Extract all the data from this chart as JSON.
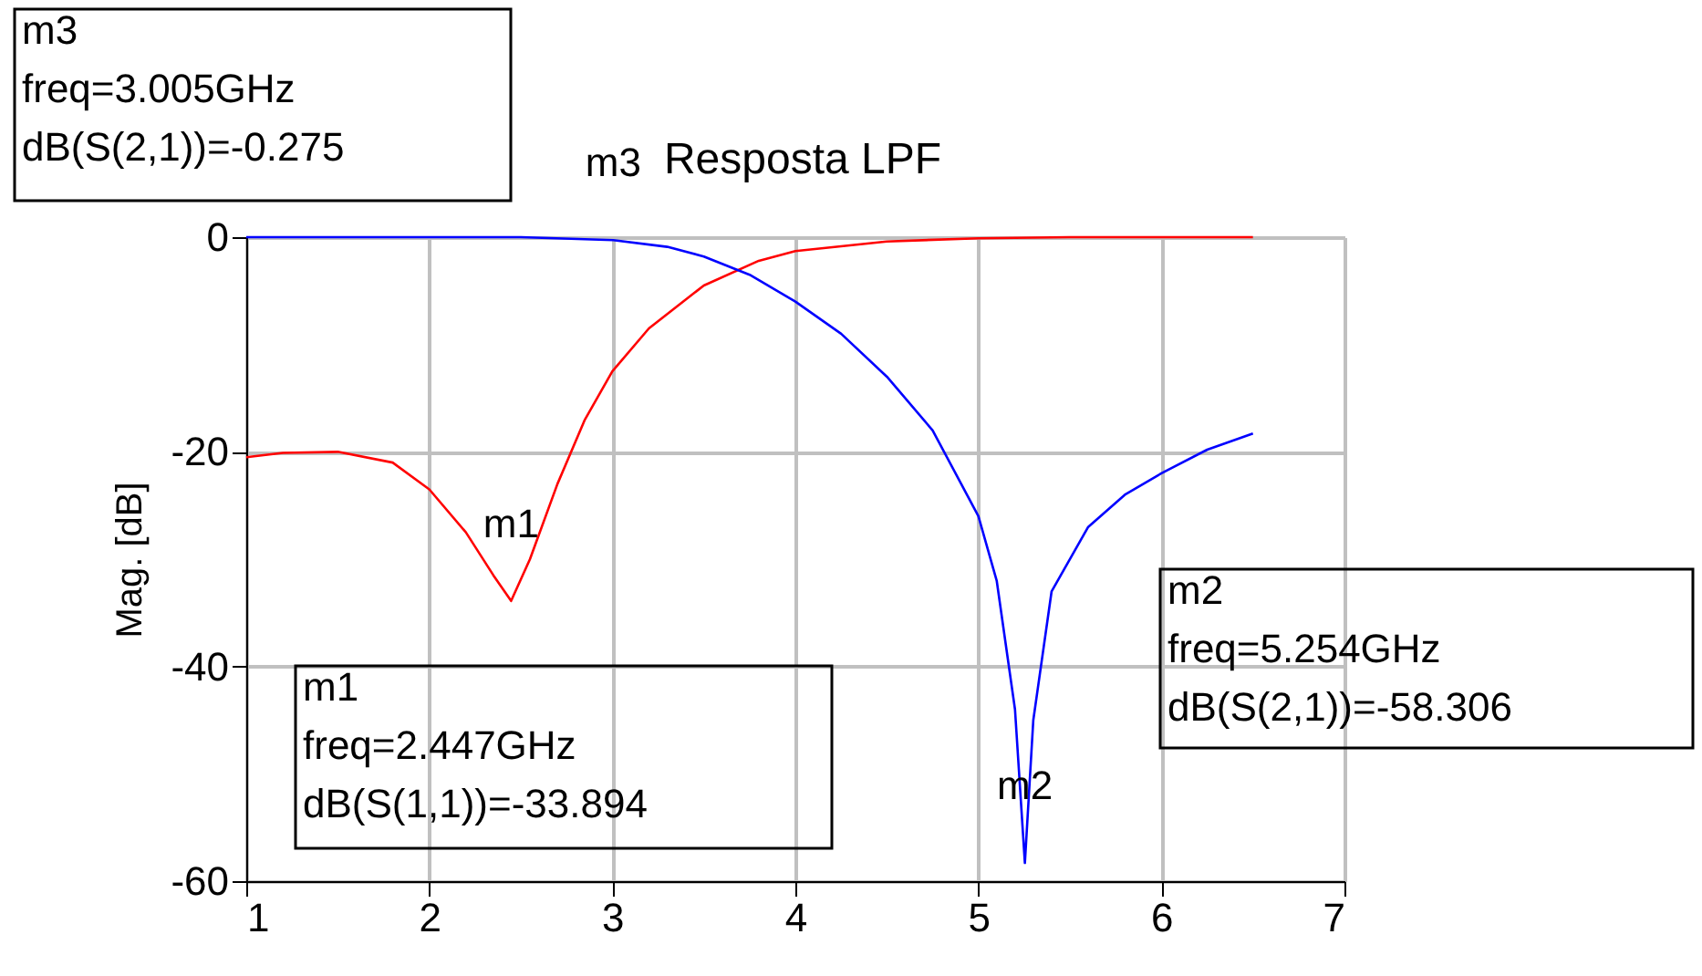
{
  "chart_data": {
    "type": "line",
    "title": "Resposta LPF",
    "ylabel": "Mag. [dB]",
    "series": [
      {
        "color": "#ff0000",
        "x": [
          1,
          1.2,
          1.5,
          1.8,
          2,
          2.2,
          2.35,
          2.447,
          2.55,
          2.7,
          2.85,
          3,
          3.2,
          3.5,
          3.8,
          4,
          4.5,
          5,
          5.5,
          6,
          6.5
        ],
        "values": [
          -20.5,
          -20.1,
          -20,
          -21,
          -23.5,
          -27.5,
          -31.5,
          -33.894,
          -30,
          -23,
          -17,
          -12.5,
          -8.5,
          -4.5,
          -2.2,
          -1.3,
          -0.4,
          -0.1,
          0,
          0,
          0
        ]
      },
      {
        "color": "#0000ff",
        "x": [
          1,
          2,
          2.5,
          3.005,
          3.3,
          3.5,
          3.75,
          4,
          4.25,
          4.5,
          4.75,
          5,
          5.1,
          5.2,
          5.254,
          5.3,
          5.4,
          5.6,
          5.8,
          6,
          6.25,
          6.5
        ],
        "values": [
          0,
          0,
          0,
          -0.275,
          -0.9,
          -1.8,
          -3.5,
          -6,
          -9,
          -13,
          -18,
          -26,
          -32,
          -44,
          -58.306,
          -45,
          -33,
          -27,
          -24,
          -22,
          -19.8,
          -18.3
        ]
      }
    ],
    "xlim": [
      1,
      7
    ],
    "xticks": [
      1,
      2,
      3,
      4,
      5,
      6,
      7
    ],
    "ylim": [
      -60,
      0
    ],
    "yticks": [
      -60,
      -40,
      -20,
      0
    ],
    "grid": true,
    "annotations": [
      {
        "text": "m1",
        "x": 2.447,
        "y": -33.894
      },
      {
        "text": "m2",
        "x": 5.254,
        "y": -58.306
      },
      {
        "text": "m3",
        "x": 3.005,
        "y": -0.275
      },
      "m3\nfreq=3.005GHz\ndB(S(2,1))=-0.275",
      "m1\nfreq=2.447GHz\ndB(S(1,1))=-33.894",
      "m2\nfreq=5.254GHz\ndB(S(2,1))=-58.306"
    ]
  }
}
